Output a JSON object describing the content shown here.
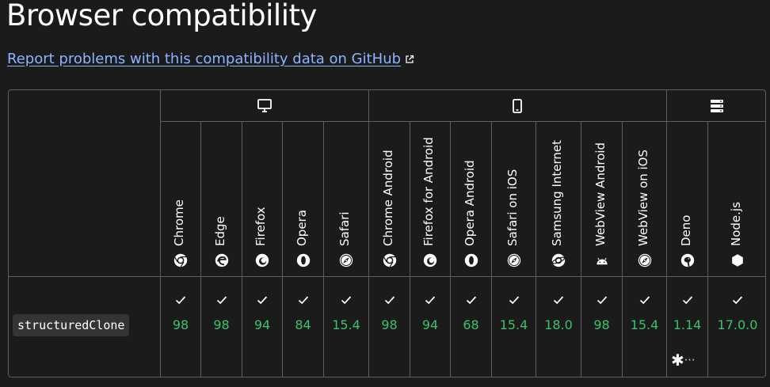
{
  "page": {
    "title": "Browser compatibility",
    "report_link": "Report problems with this compatibility data on GitHub"
  },
  "platforms": [
    {
      "name": "desktop",
      "icon": "desktop-icon"
    },
    {
      "name": "mobile",
      "icon": "mobile-icon"
    },
    {
      "name": "server",
      "icon": "server-icon"
    }
  ],
  "browsers": [
    {
      "name": "Chrome",
      "icon": "chrome-icon"
    },
    {
      "name": "Edge",
      "icon": "edge-icon"
    },
    {
      "name": "Firefox",
      "icon": "firefox-icon"
    },
    {
      "name": "Opera",
      "icon": "opera-icon"
    },
    {
      "name": "Safari",
      "icon": "safari-icon"
    },
    {
      "name": "Chrome Android",
      "icon": "chrome-icon"
    },
    {
      "name": "Firefox for Android",
      "icon": "firefox-icon"
    },
    {
      "name": "Opera Android",
      "icon": "opera-icon"
    },
    {
      "name": "Safari on iOS",
      "icon": "safari-icon"
    },
    {
      "name": "Samsung Internet",
      "icon": "samsung-internet-icon"
    },
    {
      "name": "WebView Android",
      "icon": "android-icon"
    },
    {
      "name": "WebView on iOS",
      "icon": "safari-icon"
    },
    {
      "name": "Deno",
      "icon": "deno-icon"
    },
    {
      "name": "Node.js",
      "icon": "nodejs-icon"
    }
  ],
  "feature": {
    "name": "structuredClone",
    "support": [
      {
        "version": "98",
        "supported": true
      },
      {
        "version": "98",
        "supported": true
      },
      {
        "version": "94",
        "supported": true
      },
      {
        "version": "84",
        "supported": true
      },
      {
        "version": "15.4",
        "supported": true
      },
      {
        "version": "98",
        "supported": true
      },
      {
        "version": "94",
        "supported": true
      },
      {
        "version": "68",
        "supported": true
      },
      {
        "version": "15.4",
        "supported": true
      },
      {
        "version": "18.0",
        "supported": true
      },
      {
        "version": "98",
        "supported": true
      },
      {
        "version": "15.4",
        "supported": true
      },
      {
        "version": "1.14",
        "supported": true,
        "has_notes": true,
        "note_marker": "✱",
        "note_more": "⋯"
      },
      {
        "version": "17.0.0",
        "supported": true
      }
    ]
  },
  "colors": {
    "background": "#1b1b1b",
    "border": "#5e5e5e",
    "link": "#8cb4ff",
    "supported": "#3bc26b"
  }
}
